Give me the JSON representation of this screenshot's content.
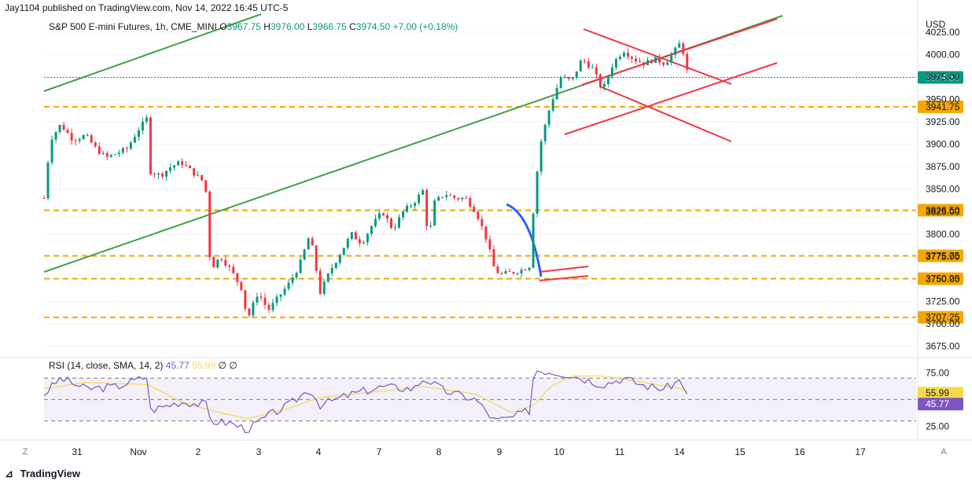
{
  "publish_line": "Jay1104 published on TradingView.com, Nov 14, 2022 16:45 UTC-5",
  "legend": {
    "title": "S&P 500 E-mini Futures, 1h, CME_MINI",
    "o_label": "O",
    "o": "3967.75",
    "h_label": "H",
    "h": "3976.00",
    "l_label": "L",
    "l": "3966.75",
    "c_label": "C",
    "c": "3974.50",
    "change": "+7.00 (+0.18%)"
  },
  "rsi_legend": {
    "label": "RSI (14, close, SMA, 14, 2)",
    "rsi": "45.77",
    "sma": "55.99",
    "extra": "∅ ∅"
  },
  "currency": "USD",
  "footer": {
    "logo_text": "TradingView"
  },
  "corner_left": "Z",
  "corner_right": "A",
  "colors": {
    "up": "#089981",
    "down": "#f23645",
    "green_line": "#43a047",
    "red_lines": "#f23645",
    "level": "#f5a700",
    "rsi": "#7e57c2",
    "rsi_sma": "#f7d94c",
    "blue_arc": "#2962ff"
  },
  "chart_data": {
    "type": "candlestick",
    "title": "S&P 500 E-mini Futures, 1h, CME_MINI",
    "price_axis": {
      "ticks": [
        3675,
        3700,
        3725,
        3750,
        3775,
        3800,
        3825,
        3850,
        3875,
        3900,
        3925,
        3950,
        3975,
        4000,
        4025
      ],
      "tick_labels": [
        "3675.00",
        "3700.00",
        "3725.00",
        "3750.00",
        "3775.00",
        "3800.00",
        "3825.00",
        "3850.00",
        "3875.00",
        "3900.00",
        "3925.00",
        "3950.00",
        "3975.00",
        "4000.00",
        "4025.00"
      ],
      "range": [
        3665,
        4045
      ],
      "current_price": 3974.5
    },
    "time_axis": {
      "labels": [
        "31",
        "Nov",
        "2",
        "3",
        "4",
        "7",
        "8",
        "9",
        "10",
        "11",
        "14",
        "15",
        "16",
        "17"
      ]
    },
    "horizontal_levels": [
      3941.75,
      3826.5,
      3775.75,
      3750.25,
      3707.25
    ],
    "level_labels": [
      "3941.75",
      "3826.50",
      "3775.75",
      "3750.25",
      "3707.25"
    ],
    "price_path": [
      [
        0.0,
        3840
      ],
      [
        0.3,
        3905
      ],
      [
        0.8,
        3922
      ],
      [
        1.4,
        3905
      ],
      [
        2.0,
        3910
      ],
      [
        2.5,
        3895
      ],
      [
        3.0,
        3885
      ],
      [
        3.5,
        3890
      ],
      [
        4.0,
        3895
      ],
      [
        4.5,
        3915
      ],
      [
        5.0,
        3930
      ],
      [
        5.1,
        3870
      ],
      [
        5.6,
        3865
      ],
      [
        6.1,
        3875
      ],
      [
        6.6,
        3880
      ],
      [
        7.1,
        3870
      ],
      [
        7.6,
        3860
      ],
      [
        7.9,
        3840
      ],
      [
        8.0,
        3760
      ],
      [
        8.5,
        3775
      ],
      [
        9.0,
        3760
      ],
      [
        9.5,
        3740
      ],
      [
        9.8,
        3705
      ],
      [
        10.3,
        3735
      ],
      [
        10.8,
        3715
      ],
      [
        11.3,
        3730
      ],
      [
        11.8,
        3745
      ],
      [
        12.3,
        3765
      ],
      [
        12.8,
        3800
      ],
      [
        13.3,
        3735
      ],
      [
        13.8,
        3760
      ],
      [
        14.3,
        3780
      ],
      [
        14.8,
        3800
      ],
      [
        15.3,
        3790
      ],
      [
        15.8,
        3810
      ],
      [
        16.3,
        3825
      ],
      [
        16.8,
        3805
      ],
      [
        17.3,
        3825
      ],
      [
        17.8,
        3835
      ],
      [
        18.3,
        3850
      ],
      [
        18.5,
        3790
      ],
      [
        18.8,
        3835
      ],
      [
        19.3,
        3845
      ],
      [
        19.8,
        3840
      ],
      [
        20.3,
        3840
      ],
      [
        20.8,
        3825
      ],
      [
        21.3,
        3795
      ],
      [
        21.7,
        3760
      ],
      [
        22.0,
        3755
      ],
      [
        22.5,
        3757
      ],
      [
        23.0,
        3760
      ],
      [
        23.4,
        3765
      ],
      [
        23.6,
        3840
      ],
      [
        23.9,
        3900
      ],
      [
        24.4,
        3945
      ],
      [
        24.9,
        3975
      ],
      [
        25.4,
        3970
      ],
      [
        25.9,
        3995
      ],
      [
        26.4,
        3985
      ],
      [
        26.9,
        3960
      ],
      [
        27.4,
        3990
      ],
      [
        27.9,
        4005
      ],
      [
        28.4,
        3995
      ],
      [
        28.9,
        3990
      ],
      [
        29.4,
        3995
      ],
      [
        29.9,
        3990
      ],
      [
        30.4,
        4005
      ],
      [
        30.7,
        4015
      ],
      [
        30.9,
        3985
      ],
      [
        31.1,
        3975
      ]
    ],
    "rsi": {
      "label": "RSI (14, close, SMA, 14, 2)",
      "current": 45.77,
      "sma_current": 55.99,
      "ticks": [
        25,
        75
      ],
      "tick_labels": [
        "25.00",
        "75.00"
      ],
      "band": [
        30,
        70
      ],
      "middle": 50,
      "range": [
        18,
        84
      ],
      "path": [
        [
          0.0,
          55
        ],
        [
          0.8,
          70
        ],
        [
          2.0,
          60
        ],
        [
          3.5,
          62
        ],
        [
          5.0,
          72
        ],
        [
          5.1,
          40
        ],
        [
          6.6,
          48
        ],
        [
          7.9,
          45
        ],
        [
          8.0,
          30
        ],
        [
          9.0,
          28
        ],
        [
          9.8,
          22
        ],
        [
          10.8,
          35
        ],
        [
          11.8,
          45
        ],
        [
          12.8,
          60
        ],
        [
          13.3,
          45
        ],
        [
          14.8,
          55
        ],
        [
          16.3,
          62
        ],
        [
          17.8,
          60
        ],
        [
          18.3,
          70
        ],
        [
          19.3,
          58
        ],
        [
          20.8,
          50
        ],
        [
          21.7,
          30
        ],
        [
          22.5,
          33
        ],
        [
          23.4,
          40
        ],
        [
          23.6,
          78
        ],
        [
          24.4,
          76
        ],
        [
          25.4,
          73
        ],
        [
          26.9,
          64
        ],
        [
          27.9,
          70
        ],
        [
          28.9,
          63
        ],
        [
          29.9,
          60
        ],
        [
          30.7,
          69
        ],
        [
          31.1,
          45.77
        ]
      ],
      "sma_path": [
        [
          0.0,
          60
        ],
        [
          2.0,
          66
        ],
        [
          5.0,
          64
        ],
        [
          6.6,
          48
        ],
        [
          8.0,
          40
        ],
        [
          9.8,
          32
        ],
        [
          11.8,
          42
        ],
        [
          13.3,
          52
        ],
        [
          16.3,
          58
        ],
        [
          18.3,
          62
        ],
        [
          20.8,
          55
        ],
        [
          22.5,
          38
        ],
        [
          23.6,
          45
        ],
        [
          24.4,
          62
        ],
        [
          25.4,
          72
        ],
        [
          26.9,
          72
        ],
        [
          28.9,
          66
        ],
        [
          30.7,
          60
        ],
        [
          31.1,
          55.99
        ]
      ]
    }
  }
}
